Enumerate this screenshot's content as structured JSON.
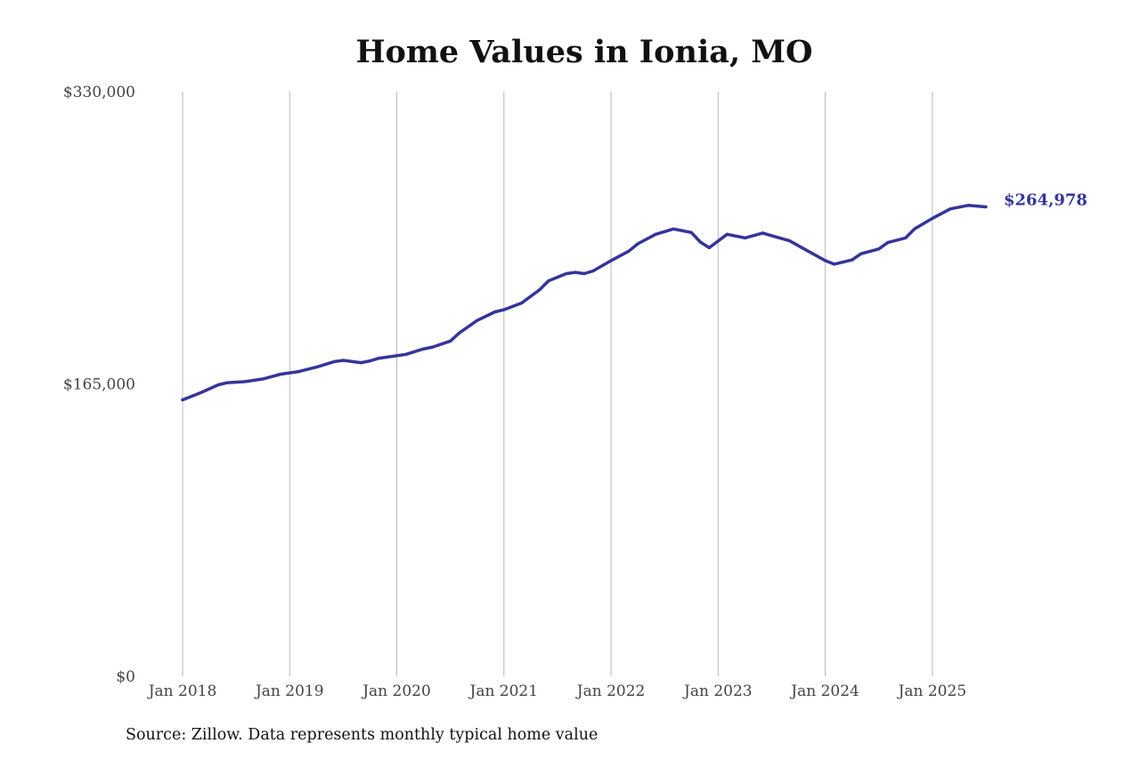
{
  "chart_data": {
    "type": "line",
    "title": "Home Values in Ionia, MO",
    "xlabel": "",
    "ylabel": "",
    "ylim": [
      0,
      330000
    ],
    "xlim": [
      "2018-01",
      "2025-07"
    ],
    "y_ticks": [
      {
        "value": 0,
        "label": "$0"
      },
      {
        "value": 165000,
        "label": "$165,000"
      },
      {
        "value": 330000,
        "label": "$330,000"
      }
    ],
    "x_ticks": [
      {
        "date": "2018-01",
        "label": "Jan 2018"
      },
      {
        "date": "2019-01",
        "label": "Jan 2019"
      },
      {
        "date": "2020-01",
        "label": "Jan 2020"
      },
      {
        "date": "2021-01",
        "label": "Jan 2021"
      },
      {
        "date": "2022-01",
        "label": "Jan 2022"
      },
      {
        "date": "2023-01",
        "label": "Jan 2023"
      },
      {
        "date": "2024-01",
        "label": "Jan 2024"
      },
      {
        "date": "2025-01",
        "label": "Jan 2025"
      }
    ],
    "grid": "vertical",
    "series": [
      {
        "color": "#36349a",
        "end_label": "$264,978",
        "points": [
          [
            "2018-01",
            156000
          ],
          [
            "2018-03",
            160000
          ],
          [
            "2018-05",
            164500
          ],
          [
            "2018-06",
            165700
          ],
          [
            "2018-08",
            166300
          ],
          [
            "2018-10",
            167800
          ],
          [
            "2018-12",
            170500
          ],
          [
            "2019-02",
            172000
          ],
          [
            "2019-04",
            174500
          ],
          [
            "2019-06",
            177600
          ],
          [
            "2019-07",
            178300
          ],
          [
            "2019-09",
            177000
          ],
          [
            "2019-10",
            178000
          ],
          [
            "2019-11",
            179500
          ],
          [
            "2020-02",
            181700
          ],
          [
            "2020-04",
            184800
          ],
          [
            "2020-05",
            185800
          ],
          [
            "2020-07",
            189200
          ],
          [
            "2020-08",
            193800
          ],
          [
            "2020-10",
            200800
          ],
          [
            "2020-12",
            205700
          ],
          [
            "2021-01",
            206900
          ],
          [
            "2021-03",
            210700
          ],
          [
            "2021-05",
            218200
          ],
          [
            "2021-06",
            223200
          ],
          [
            "2021-08",
            227300
          ],
          [
            "2021-09",
            228000
          ],
          [
            "2021-10",
            227300
          ],
          [
            "2021-11",
            228800
          ],
          [
            "2022-01",
            234600
          ],
          [
            "2022-03",
            240000
          ],
          [
            "2022-04",
            244100
          ],
          [
            "2022-06",
            249500
          ],
          [
            "2022-08",
            252500
          ],
          [
            "2022-10",
            250500
          ],
          [
            "2022-11",
            245100
          ],
          [
            "2022-12",
            241900
          ],
          [
            "2023-02",
            249500
          ],
          [
            "2023-04",
            247400
          ],
          [
            "2023-06",
            250200
          ],
          [
            "2023-07",
            248700
          ],
          [
            "2023-09",
            245800
          ],
          [
            "2023-11",
            240200
          ],
          [
            "2024-01",
            234600
          ],
          [
            "2024-02",
            232600
          ],
          [
            "2024-04",
            235000
          ],
          [
            "2024-05",
            238500
          ],
          [
            "2024-07",
            241200
          ],
          [
            "2024-08",
            244800
          ],
          [
            "2024-10",
            247400
          ],
          [
            "2024-11",
            252500
          ],
          [
            "2025-01",
            258500
          ],
          [
            "2025-03",
            263800
          ],
          [
            "2025-05",
            265800
          ],
          [
            "2025-07",
            264978
          ]
        ]
      }
    ]
  },
  "source_note": "Source: Zillow. Data represents monthly typical home value"
}
